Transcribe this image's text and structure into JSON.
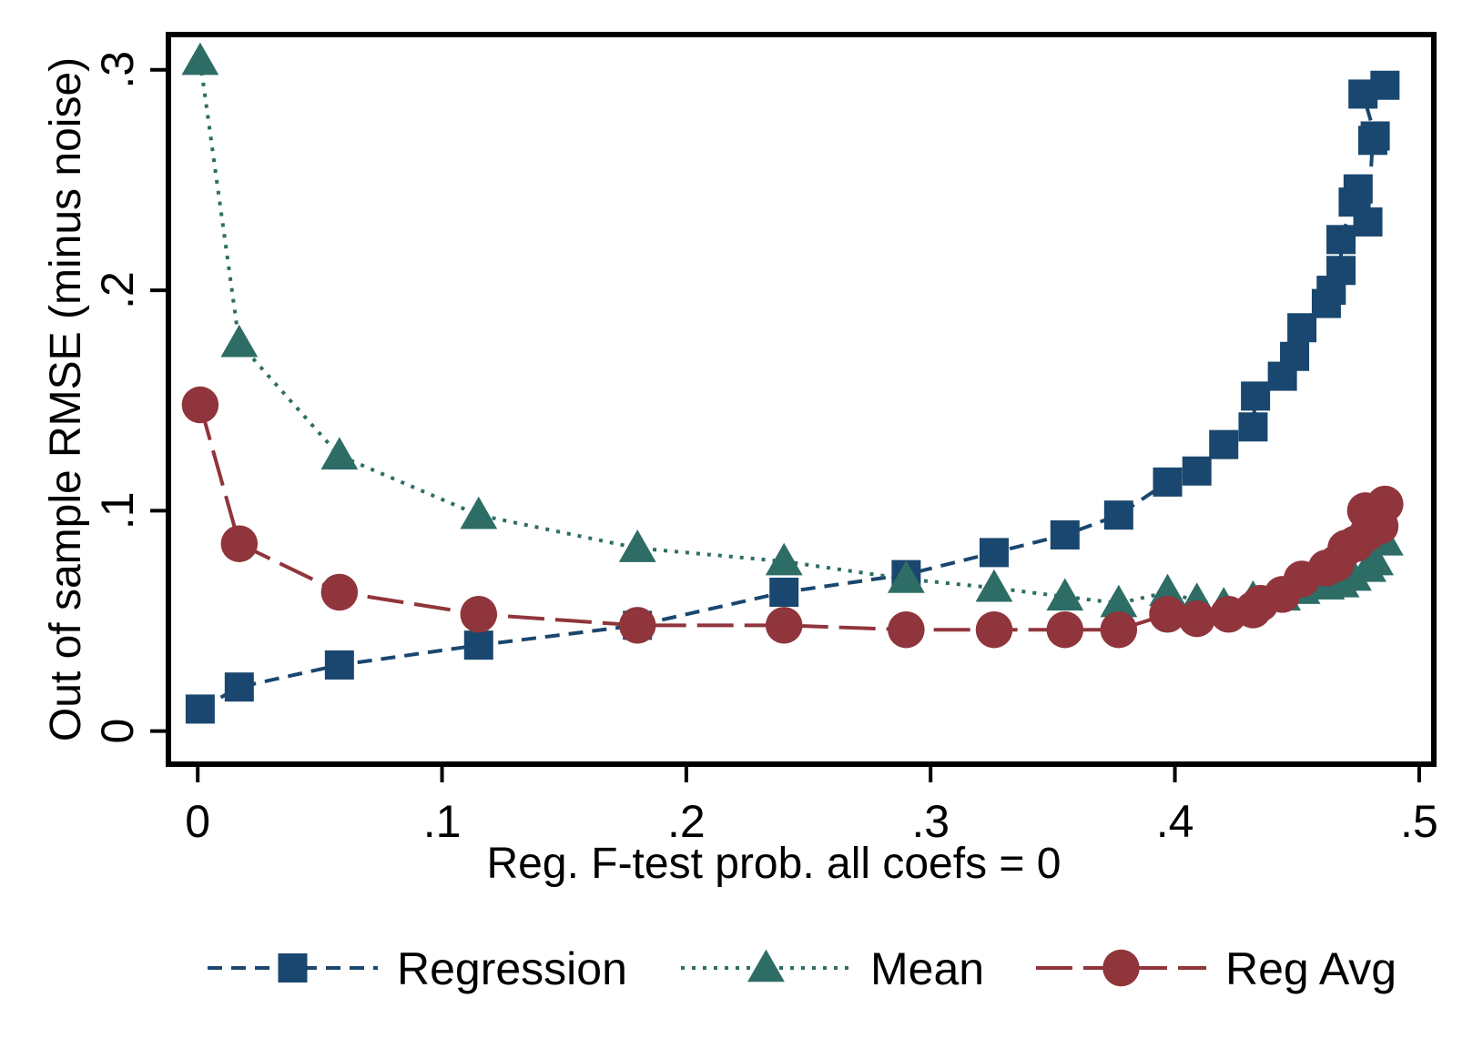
{
  "chart_data": {
    "type": "line",
    "title": "",
    "xlabel": "Reg. F-test prob. all coefs = 0",
    "ylabel": "Out of sample RMSE (minus noise)",
    "xlim": [
      -0.012,
      0.506
    ],
    "ylim": [
      -0.015,
      0.316
    ],
    "x_ticks": [
      0,
      0.1,
      0.2,
      0.3,
      0.4,
      0.5
    ],
    "x_tick_labels": [
      "0",
      ".1",
      ".2",
      ".3",
      ".4",
      ".5"
    ],
    "y_ticks": [
      0,
      0.1,
      0.2,
      0.3
    ],
    "y_tick_labels": [
      "0",
      ".1",
      ".2",
      ".3"
    ],
    "grid": false,
    "legend_position": "bottom",
    "series": [
      {
        "name": "Regression",
        "color": "#1a476f",
        "marker": "square",
        "line_style": "dashed",
        "points": [
          [
            0.001,
            0.01
          ],
          [
            0.017,
            0.02
          ],
          [
            0.058,
            0.03
          ],
          [
            0.115,
            0.039
          ],
          [
            0.18,
            0.048
          ],
          [
            0.24,
            0.063
          ],
          [
            0.29,
            0.071
          ],
          [
            0.326,
            0.081
          ],
          [
            0.355,
            0.089
          ],
          [
            0.377,
            0.098
          ],
          [
            0.397,
            0.113
          ],
          [
            0.409,
            0.118
          ],
          [
            0.42,
            0.13
          ],
          [
            0.432,
            0.138
          ],
          [
            0.433,
            0.152
          ],
          [
            0.444,
            0.161
          ],
          [
            0.449,
            0.17
          ],
          [
            0.452,
            0.183
          ],
          [
            0.462,
            0.194
          ],
          [
            0.464,
            0.2
          ],
          [
            0.468,
            0.209
          ],
          [
            0.468,
            0.223
          ],
          [
            0.473,
            0.24
          ],
          [
            0.475,
            0.246
          ],
          [
            0.479,
            0.231
          ],
          [
            0.481,
            0.268
          ],
          [
            0.482,
            0.27
          ],
          [
            0.477,
            0.289
          ],
          [
            0.486,
            0.293
          ]
        ]
      },
      {
        "name": "Mean",
        "color": "#2d6d66",
        "marker": "triangle",
        "line_style": "dotted",
        "points": [
          [
            0.001,
            0.304
          ],
          [
            0.017,
            0.176
          ],
          [
            0.058,
            0.125
          ],
          [
            0.115,
            0.098
          ],
          [
            0.18,
            0.083
          ],
          [
            0.24,
            0.077
          ],
          [
            0.29,
            0.069
          ],
          [
            0.326,
            0.065
          ],
          [
            0.355,
            0.061
          ],
          [
            0.377,
            0.058
          ],
          [
            0.397,
            0.063
          ],
          [
            0.409,
            0.059
          ],
          [
            0.42,
            0.057
          ],
          [
            0.432,
            0.06
          ],
          [
            0.444,
            0.061
          ],
          [
            0.452,
            0.064
          ],
          [
            0.462,
            0.066
          ],
          [
            0.468,
            0.067
          ],
          [
            0.473,
            0.07
          ],
          [
            0.479,
            0.074
          ],
          [
            0.482,
            0.077
          ],
          [
            0.486,
            0.086
          ]
        ]
      },
      {
        "name": "Reg Avg",
        "color": "#90353b",
        "marker": "circle",
        "line_style": "longdash",
        "points": [
          [
            0.001,
            0.148
          ],
          [
            0.017,
            0.085
          ],
          [
            0.058,
            0.063
          ],
          [
            0.115,
            0.053
          ],
          [
            0.18,
            0.048
          ],
          [
            0.24,
            0.048
          ],
          [
            0.29,
            0.046
          ],
          [
            0.326,
            0.046
          ],
          [
            0.355,
            0.046
          ],
          [
            0.377,
            0.046
          ],
          [
            0.397,
            0.053
          ],
          [
            0.409,
            0.051
          ],
          [
            0.422,
            0.053
          ],
          [
            0.432,
            0.055
          ],
          [
            0.435,
            0.058
          ],
          [
            0.444,
            0.062
          ],
          [
            0.452,
            0.069
          ],
          [
            0.462,
            0.074
          ],
          [
            0.466,
            0.076
          ],
          [
            0.47,
            0.083
          ],
          [
            0.474,
            0.085
          ],
          [
            0.479,
            0.09
          ],
          [
            0.478,
            0.1
          ],
          [
            0.484,
            0.093
          ],
          [
            0.486,
            0.103
          ]
        ]
      }
    ]
  }
}
